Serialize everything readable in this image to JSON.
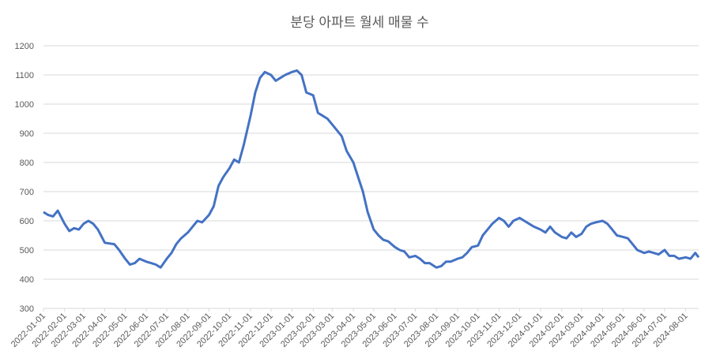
{
  "chart_data": {
    "type": "line",
    "title": "분당 아파트 월세 매물 수",
    "x": [
      "2022-01-01",
      "2022-01-08",
      "2022-01-15",
      "2022-01-22",
      "2022-02-01",
      "2022-02-08",
      "2022-02-15",
      "2022-02-22",
      "2022-03-01",
      "2022-03-08",
      "2022-03-15",
      "2022-03-22",
      "2022-04-01",
      "2022-04-15",
      "2022-04-22",
      "2022-05-01",
      "2022-05-08",
      "2022-05-15",
      "2022-05-22",
      "2022-06-01",
      "2022-06-08",
      "2022-06-15",
      "2022-06-22",
      "2022-07-01",
      "2022-07-08",
      "2022-07-15",
      "2022-07-22",
      "2022-08-01",
      "2022-08-08",
      "2022-08-15",
      "2022-08-22",
      "2022-09-01",
      "2022-09-08",
      "2022-09-15",
      "2022-09-22",
      "2022-10-01",
      "2022-10-08",
      "2022-10-15",
      "2022-10-22",
      "2022-11-01",
      "2022-11-08",
      "2022-11-15",
      "2022-11-22",
      "2022-12-01",
      "2022-12-08",
      "2022-12-15",
      "2022-12-22",
      "2023-01-01",
      "2023-01-08",
      "2023-01-15",
      "2023-01-22",
      "2023-02-01",
      "2023-02-08",
      "2023-02-15",
      "2023-02-22",
      "2023-03-01",
      "2023-03-08",
      "2023-03-15",
      "2023-03-22",
      "2023-04-01",
      "2023-04-08",
      "2023-04-15",
      "2023-04-22",
      "2023-05-01",
      "2023-05-08",
      "2023-05-15",
      "2023-05-22",
      "2023-06-01",
      "2023-06-08",
      "2023-06-15",
      "2023-06-22",
      "2023-07-01",
      "2023-07-08",
      "2023-07-15",
      "2023-07-22",
      "2023-08-01",
      "2023-08-08",
      "2023-08-15",
      "2023-08-22",
      "2023-09-01",
      "2023-09-08",
      "2023-09-15",
      "2023-09-22",
      "2023-10-01",
      "2023-10-08",
      "2023-10-15",
      "2023-10-22",
      "2023-11-01",
      "2023-11-08",
      "2023-11-15",
      "2023-11-22",
      "2023-12-01",
      "2023-12-08",
      "2023-12-15",
      "2023-12-22",
      "2024-01-01",
      "2024-01-08",
      "2024-01-15",
      "2024-01-22",
      "2024-02-01",
      "2024-02-08",
      "2024-02-15",
      "2024-02-22",
      "2024-03-01",
      "2024-03-08",
      "2024-03-15",
      "2024-03-22",
      "2024-04-01",
      "2024-04-08",
      "2024-04-15",
      "2024-04-22",
      "2024-05-01",
      "2024-05-08",
      "2024-05-15",
      "2024-05-22",
      "2024-06-01",
      "2024-06-08",
      "2024-06-15",
      "2024-06-22",
      "2024-07-01",
      "2024-07-08",
      "2024-07-15",
      "2024-07-22",
      "2024-08-01",
      "2024-08-08",
      "2024-08-15",
      "2024-08-20"
    ],
    "series": [
      {
        "name": "매물 수",
        "color": "#4472c4",
        "values": [
          630,
          620,
          615,
          635,
          590,
          565,
          575,
          570,
          590,
          600,
          590,
          570,
          525,
          520,
          500,
          470,
          450,
          455,
          470,
          460,
          455,
          450,
          440,
          470,
          490,
          520,
          540,
          560,
          580,
          600,
          595,
          620,
          650,
          720,
          750,
          780,
          810,
          800,
          860,
          960,
          1040,
          1090,
          1110,
          1100,
          1080,
          1090,
          1100,
          1110,
          1115,
          1100,
          1040,
          1030,
          970,
          960,
          950,
          930,
          910,
          890,
          840,
          800,
          750,
          700,
          630,
          570,
          550,
          535,
          530,
          510,
          500,
          495,
          475,
          480,
          470,
          455,
          455,
          440,
          445,
          460,
          460,
          470,
          475,
          490,
          510,
          515,
          550,
          570,
          590,
          610,
          600,
          580,
          600,
          610,
          600,
          590,
          580,
          570,
          560,
          580,
          560,
          545,
          540,
          560,
          545,
          555,
          580,
          590,
          595,
          600,
          590,
          570,
          550,
          545,
          540,
          520,
          500,
          490,
          495,
          490,
          485,
          500,
          480,
          480,
          470,
          475,
          470,
          490,
          475
        ]
      }
    ],
    "xlim": [
      "2022-01-01",
      "2024-08-20"
    ],
    "xticks": [
      "2022-01-01",
      "2022-02-01",
      "2022-03-01",
      "2022-04-01",
      "2022-05-01",
      "2022-06-01",
      "2022-07-01",
      "2022-08-01",
      "2022-09-01",
      "2022-10-01",
      "2022-11-01",
      "2022-12-01",
      "2023-01-01",
      "2023-02-01",
      "2023-03-01",
      "2023-04-01",
      "2023-05-01",
      "2023-06-01",
      "2023-07-01",
      "2023-08-01",
      "2023-09-01",
      "2023-10-01",
      "2023-11-01",
      "2023-12-01",
      "2024-01-01",
      "2024-02-01",
      "2024-03-01",
      "2024-04-01",
      "2024-05-01",
      "2024-06-01",
      "2024-07-01",
      "2024-08-01"
    ],
    "ylim": [
      300,
      1200
    ],
    "yticks": [
      300,
      400,
      500,
      600,
      700,
      800,
      900,
      1000,
      1100,
      1200
    ],
    "grid": true
  }
}
